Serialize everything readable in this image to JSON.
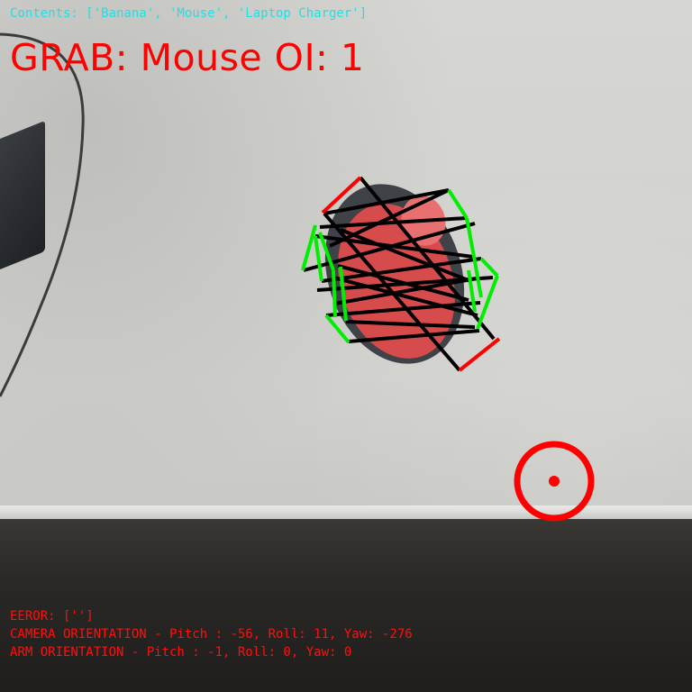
{
  "hud": {
    "contents": "Contents: ['Banana', 'Mouse', 'Laptop Charger']",
    "grab": "GRAB: Mouse OI: 1",
    "error": "EEROR: ['']",
    "camera_orientation": "CAMERA ORIENTATION - Pitch : -56, Roll: 11, Yaw: -276",
    "arm_orientation": "ARM ORIENTATION - Pitch : -1, Roll: 0, Yaw: 0"
  },
  "colors": {
    "contents_text": "#1fe0e6",
    "alert_text": "#ff0000",
    "detection_edge": "#00ee00",
    "detection_axis": "#ff0000",
    "detection_lines": "#000000",
    "target_reticle": "#ff0000"
  },
  "scene": {
    "tracked_object": "mouse",
    "target_marker": "reticle-icon"
  }
}
